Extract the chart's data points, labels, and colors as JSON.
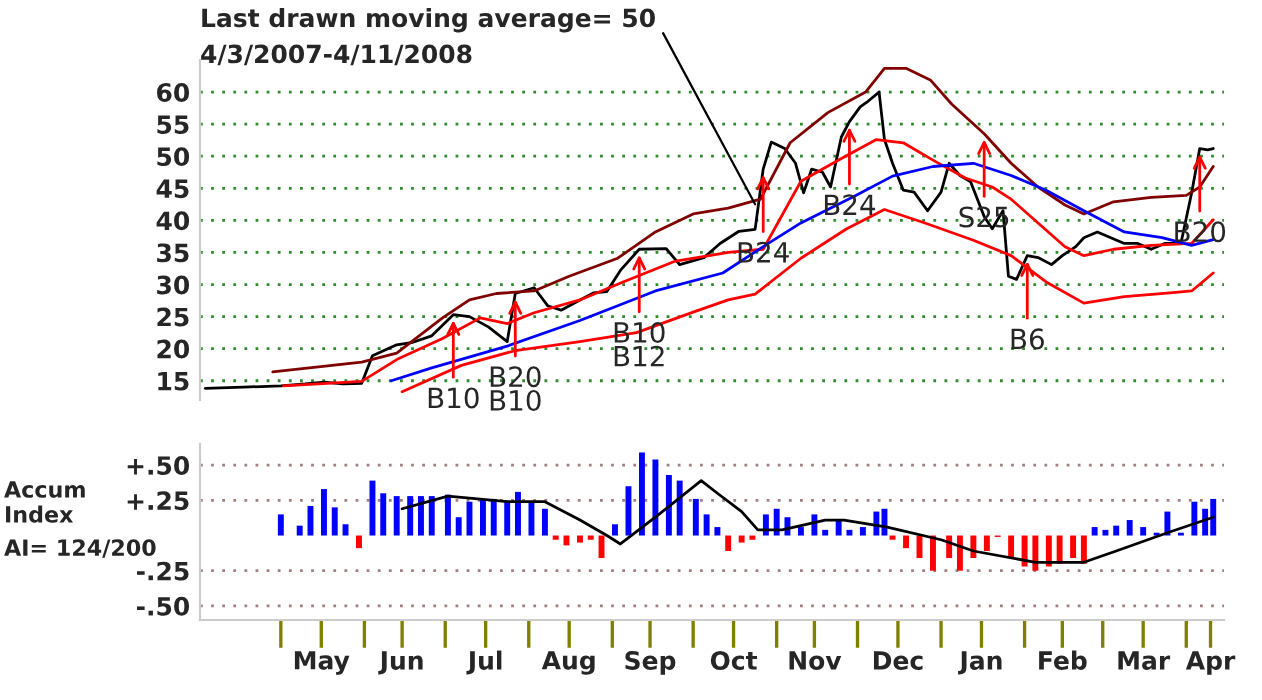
{
  "chart_data": [
    {
      "type": "line",
      "subtitle": "4/3/2007-4/11/2008",
      "annotations": [
        {
          "text": "Last drawn moving average= 50",
          "x": "2007-10-24",
          "y": 42.5
        },
        {
          "text": "B10",
          "x": "2007-07-04",
          "y": 25.3
        },
        {
          "text": "B20\nB10",
          "x": "2007-07-27",
          "y": 28.6
        },
        {
          "text": "B10\nB12",
          "x": "2007-09-11",
          "y": 35.5
        },
        {
          "text": "B24",
          "x": "2007-10-27",
          "y": 48.0
        },
        {
          "text": "B24",
          "x": "2007-11-28",
          "y": 55.4
        },
        {
          "text": "S25",
          "x": "2008-01-17",
          "y": 53.5
        },
        {
          "text": "B6",
          "x": "2008-02-02",
          "y": 34.5
        },
        {
          "text": "B20",
          "x": "2008-04-06",
          "y": 51.2
        }
      ],
      "series": [
        {
          "color": "#000000",
          "x": [
            "2007-04-03",
            "2007-04-17",
            "2007-05-01",
            "2007-05-10",
            "2007-05-17",
            "2007-05-24",
            "2007-05-31",
            "2007-06-04",
            "2007-06-13",
            "2007-06-19",
            "2007-06-26",
            "2007-07-04",
            "2007-07-10",
            "2007-07-17",
            "2007-07-24",
            "2007-07-27",
            "2007-08-03",
            "2007-08-08",
            "2007-08-13",
            "2007-08-20",
            "2007-08-25",
            "2007-08-30",
            "2007-09-04",
            "2007-09-11",
            "2007-09-21",
            "2007-09-26",
            "2007-10-05",
            "2007-10-11",
            "2007-10-18",
            "2007-10-24",
            "2007-10-27",
            "2007-10-30",
            "2007-11-04",
            "2007-11-08",
            "2007-11-11",
            "2007-11-14",
            "2007-11-18",
            "2007-11-21",
            "2007-11-25",
            "2007-11-28",
            "2007-12-02",
            "2007-12-05",
            "2007-12-09",
            "2007-12-11",
            "2007-12-14",
            "2007-12-18",
            "2007-12-22",
            "2007-12-27",
            "2008-01-01",
            "2008-01-04",
            "2008-01-08",
            "2008-01-12",
            "2008-01-17",
            "2008-01-20",
            "2008-01-24",
            "2008-01-26",
            "2008-01-29",
            "2008-02-02",
            "2008-02-06",
            "2008-02-11",
            "2008-02-15",
            "2008-02-20",
            "2008-02-23",
            "2008-02-28",
            "2008-03-04",
            "2008-03-09",
            "2008-03-14",
            "2008-03-19",
            "2008-03-24",
            "2008-03-30",
            "2008-04-03",
            "2008-04-06",
            "2008-04-09",
            "2008-04-11"
          ],
          "values": [
            13.8,
            14.0,
            14.2,
            14.5,
            14.8,
            14.5,
            14.6,
            18.9,
            20.6,
            21.0,
            22.0,
            25.3,
            25.0,
            23.4,
            21.1,
            28.6,
            29.5,
            26.7,
            26.0,
            27.6,
            28.7,
            28.9,
            32.2,
            35.5,
            35.6,
            33.1,
            34.2,
            36.4,
            38.3,
            38.6,
            48.0,
            52.2,
            51.2,
            48.9,
            44.3,
            48.0,
            47.5,
            45.2,
            53.0,
            55.4,
            57.7,
            58.6,
            60.0,
            52.6,
            48.9,
            44.7,
            44.4,
            41.5,
            44.4,
            48.9,
            47.0,
            46.0,
            40.6,
            38.7,
            41.5,
            31.3,
            30.8,
            34.5,
            34.2,
            33.1,
            34.5,
            35.9,
            37.3,
            38.2,
            37.3,
            36.4,
            36.4,
            35.5,
            36.4,
            36.4,
            44.3,
            51.2,
            51.0,
            51.2
          ]
        },
        {
          "color": "#800000",
          "x": [
            "2007-04-28",
            "2007-05-31",
            "2007-06-13",
            "2007-06-30",
            "2007-07-10",
            "2007-07-20",
            "2007-08-03",
            "2007-08-16",
            "2007-09-03",
            "2007-09-17",
            "2007-10-01",
            "2007-10-14",
            "2007-10-26",
            "2007-11-06",
            "2007-11-20",
            "2007-12-04",
            "2007-12-11",
            "2007-12-19",
            "2007-12-28",
            "2008-01-05",
            "2008-01-17",
            "2008-01-27",
            "2008-02-06",
            "2008-02-16",
            "2008-02-23",
            "2008-03-05",
            "2008-03-19",
            "2008-04-01",
            "2008-04-06",
            "2008-04-11"
          ],
          "values": [
            16.4,
            17.9,
            19.3,
            24.8,
            27.6,
            28.6,
            29.0,
            31.3,
            34.1,
            38.2,
            41.0,
            41.9,
            43.3,
            52.1,
            56.8,
            60.0,
            63.7,
            63.7,
            61.9,
            58.1,
            53.5,
            48.9,
            45.2,
            42.4,
            41.0,
            42.9,
            43.6,
            43.9,
            45.2,
            48.4
          ]
        },
        {
          "color": "#ff0000",
          "x": [
            "2007-05-02",
            "2007-05-31",
            "2007-06-13",
            "2007-06-30",
            "2007-07-14",
            "2007-07-24",
            "2007-08-03",
            "2007-08-20",
            "2007-09-05",
            "2007-09-24",
            "2007-10-14",
            "2007-10-27",
            "2007-11-10",
            "2007-11-24",
            "2007-12-08",
            "2007-12-18",
            "2007-12-29",
            "2008-01-10",
            "2008-01-20",
            "2008-01-27",
            "2008-02-06",
            "2008-02-16",
            "2008-02-23",
            "2008-03-05",
            "2008-03-19",
            "2008-04-03",
            "2008-04-11"
          ],
          "values": [
            14.2,
            14.9,
            18.3,
            21.6,
            24.8,
            23.9,
            25.6,
            27.6,
            30.4,
            33.6,
            35.0,
            35.5,
            46.1,
            49.4,
            52.6,
            52.1,
            49.4,
            46.6,
            45.2,
            43.3,
            39.6,
            35.9,
            34.5,
            35.5,
            36.1,
            36.4,
            40.1
          ]
        },
        {
          "color": "#0000ff",
          "x": [
            "2007-06-11",
            "2007-06-26",
            "2007-07-24",
            "2007-08-20",
            "2007-09-17",
            "2007-10-12",
            "2007-10-27",
            "2007-11-10",
            "2007-11-30",
            "2007-12-14",
            "2007-12-29",
            "2008-01-13",
            "2008-01-27",
            "2008-02-09",
            "2008-02-23",
            "2008-03-09",
            "2008-03-23",
            "2008-04-03",
            "2008-04-11"
          ],
          "values": [
            15.0,
            17.0,
            20.4,
            24.4,
            29.0,
            31.8,
            35.9,
            39.6,
            43.8,
            46.9,
            48.4,
            48.9,
            47.0,
            44.7,
            41.5,
            38.2,
            37.3,
            36.1,
            37.0
          ]
        },
        {
          "color": "#ff0000",
          "x": [
            "2007-06-15",
            "2007-07-07",
            "2007-07-27",
            "2007-08-20",
            "2007-09-10",
            "2007-10-01",
            "2007-10-14",
            "2007-10-24",
            "2007-11-10",
            "2007-11-27",
            "2007-12-11",
            "2007-12-26",
            "2008-01-13",
            "2008-01-27",
            "2008-02-09",
            "2008-02-23",
            "2008-03-09",
            "2008-03-26",
            "2008-04-03",
            "2008-04-11"
          ],
          "values": [
            13.3,
            17.4,
            19.7,
            21.1,
            22.5,
            25.7,
            27.6,
            28.5,
            34.1,
            38.7,
            41.7,
            39.6,
            36.9,
            34.5,
            30.4,
            27.1,
            28.1,
            28.7,
            29.0,
            31.8
          ]
        }
      ],
      "xlim": [
        "2007-04-01",
        "2008-04-15"
      ],
      "ylim": [
        12,
        65
      ],
      "yticks": [
        15,
        20,
        25,
        30,
        35,
        40,
        45,
        50,
        55,
        60
      ],
      "grid": "y",
      "tick_labels": "y"
    },
    {
      "type": "bar",
      "ylabel": "Accum\nIndex",
      "annotations": [
        "AI= 124/200"
      ],
      "series": [
        {
          "type": "bar",
          "x": [
            "2007-05-01",
            "2007-05-08",
            "2007-05-12",
            "2007-05-17",
            "2007-05-21",
            "2007-05-25",
            "2007-05-30",
            "2007-06-04",
            "2007-06-08",
            "2007-06-13",
            "2007-06-18",
            "2007-06-22",
            "2007-06-26",
            "2007-07-02",
            "2007-07-06",
            "2007-07-10",
            "2007-07-15",
            "2007-07-19",
            "2007-07-24",
            "2007-07-28",
            "2007-08-02",
            "2007-08-07",
            "2007-08-11",
            "2007-08-15",
            "2007-08-20",
            "2007-08-24",
            "2007-08-28",
            "2007-09-02",
            "2007-09-07",
            "2007-09-12",
            "2007-09-17",
            "2007-09-22",
            "2007-09-26",
            "2007-10-02",
            "2007-10-06",
            "2007-10-10",
            "2007-10-14",
            "2007-10-19",
            "2007-10-23",
            "2007-10-28",
            "2007-11-01",
            "2007-11-05",
            "2007-11-10",
            "2007-11-15",
            "2007-11-19",
            "2007-11-24",
            "2007-11-28",
            "2007-12-03",
            "2007-12-08",
            "2007-12-11",
            "2007-12-14",
            "2007-12-19",
            "2007-12-24",
            "2007-12-29",
            "2008-01-04",
            "2008-01-08",
            "2008-01-13",
            "2008-01-18",
            "2008-01-22",
            "2008-01-27",
            "2008-02-01",
            "2008-02-05",
            "2008-02-10",
            "2008-02-14",
            "2008-02-19",
            "2008-02-23",
            "2008-02-27",
            "2008-03-02",
            "2008-03-06",
            "2008-03-11",
            "2008-03-16",
            "2008-03-21",
            "2008-03-25",
            "2008-03-30",
            "2008-04-04",
            "2008-04-08",
            "2008-04-11"
          ],
          "values": [
            0.15,
            0.07,
            0.21,
            0.33,
            0.2,
            0.08,
            -0.09,
            0.39,
            0.3,
            0.28,
            0.28,
            0.28,
            0.28,
            0.29,
            0.13,
            0.24,
            0.26,
            0.26,
            0.24,
            0.31,
            0.24,
            0.19,
            -0.03,
            -0.07,
            -0.05,
            -0.03,
            -0.16,
            0.08,
            0.35,
            0.59,
            0.54,
            0.43,
            0.39,
            0.26,
            0.15,
            0.06,
            -0.11,
            -0.05,
            -0.03,
            0.15,
            0.19,
            0.13,
            0.06,
            0.15,
            0.04,
            0.11,
            0.04,
            0.06,
            0.17,
            0.19,
            -0.03,
            -0.09,
            -0.16,
            -0.25,
            -0.16,
            -0.25,
            -0.16,
            -0.11,
            -0.01,
            -0.16,
            -0.22,
            -0.25,
            -0.22,
            -0.2,
            -0.16,
            -0.2,
            0.06,
            0.04,
            0.07,
            0.11,
            0.06,
            0.02,
            0.17,
            0.02,
            0.24,
            0.19,
            0.26
          ],
          "colors": [
            "#0000ff",
            "#0000ff",
            "#0000ff",
            "#0000ff",
            "#0000ff",
            "#0000ff",
            "#ff0000",
            "#0000ff",
            "#0000ff",
            "#0000ff",
            "#0000ff",
            "#0000ff",
            "#0000ff",
            "#0000ff",
            "#0000ff",
            "#0000ff",
            "#0000ff",
            "#0000ff",
            "#0000ff",
            "#0000ff",
            "#0000ff",
            "#0000ff",
            "#ff0000",
            "#ff0000",
            "#ff0000",
            "#ff0000",
            "#ff0000",
            "#0000ff",
            "#0000ff",
            "#0000ff",
            "#0000ff",
            "#0000ff",
            "#0000ff",
            "#0000ff",
            "#0000ff",
            "#0000ff",
            "#ff0000",
            "#ff0000",
            "#ff0000",
            "#0000ff",
            "#0000ff",
            "#0000ff",
            "#0000ff",
            "#0000ff",
            "#0000ff",
            "#0000ff",
            "#0000ff",
            "#0000ff",
            "#0000ff",
            "#0000ff",
            "#ff0000",
            "#ff0000",
            "#ff0000",
            "#ff0000",
            "#ff0000",
            "#ff0000",
            "#ff0000",
            "#ff0000",
            "#ff0000",
            "#ff0000",
            "#ff0000",
            "#ff0000",
            "#ff0000",
            "#ff0000",
            "#ff0000",
            "#ff0000",
            "#0000ff",
            "#0000ff",
            "#0000ff",
            "#0000ff",
            "#0000ff",
            "#0000ff",
            "#0000ff",
            "#0000ff",
            "#0000ff",
            "#0000ff",
            "#0000ff"
          ]
        },
        {
          "type": "line",
          "color": "#000000",
          "x": [
            "2007-06-15",
            "2007-07-02",
            "2007-07-24",
            "2007-08-07",
            "2007-08-20",
            "2007-08-30",
            "2007-09-04",
            "2007-09-17",
            "2007-10-04",
            "2007-10-10",
            "2007-10-19",
            "2007-10-25",
            "2007-11-03",
            "2007-11-19",
            "2007-11-26",
            "2007-12-12",
            "2008-01-01",
            "2008-01-13",
            "2008-02-05",
            "2008-02-23",
            "2008-03-06",
            "2008-03-25",
            "2008-04-11"
          ],
          "values": [
            0.19,
            0.28,
            0.24,
            0.24,
            0.11,
            0.0,
            -0.06,
            0.13,
            0.39,
            0.3,
            0.17,
            0.04,
            0.04,
            0.11,
            0.11,
            0.06,
            -0.03,
            -0.11,
            -0.19,
            -0.19,
            -0.11,
            0.02,
            0.13
          ]
        }
      ],
      "xlim": [
        "2007-04-01",
        "2008-04-15"
      ],
      "ylim": [
        -0.6,
        0.65
      ],
      "yticks": [
        {
          "value": 0.5,
          "label": "+.50"
        },
        {
          "value": 0.25,
          "label": "+.25"
        },
        {
          "value": -0.25,
          "label": "-.25"
        },
        {
          "value": -0.5,
          "label": "-.50"
        }
      ],
      "xticks": [
        {
          "value": "2007-05-01",
          "label": null
        },
        {
          "value": "2007-05-16",
          "label": "May"
        },
        {
          "value": "2007-06-01",
          "label": null
        },
        {
          "value": "2007-06-15",
          "label": "Jun"
        },
        {
          "value": "2007-07-01",
          "label": null
        },
        {
          "value": "2007-07-16",
          "label": "Jul"
        },
        {
          "value": "2007-08-01",
          "label": null
        },
        {
          "value": "2007-08-16",
          "label": "Aug"
        },
        {
          "value": "2007-09-01",
          "label": null
        },
        {
          "value": "2007-09-15",
          "label": "Sep"
        },
        {
          "value": "2007-10-01",
          "label": null
        },
        {
          "value": "2007-10-16",
          "label": "Oct"
        },
        {
          "value": "2007-11-01",
          "label": null
        },
        {
          "value": "2007-11-15",
          "label": "Nov"
        },
        {
          "value": "2007-12-01",
          "label": null
        },
        {
          "value": "2007-12-16",
          "label": "Dec"
        },
        {
          "value": "2008-01-01",
          "label": null
        },
        {
          "value": "2008-01-16",
          "label": "Jan"
        },
        {
          "value": "2008-02-01",
          "label": null
        },
        {
          "value": "2008-02-15",
          "label": "Feb"
        },
        {
          "value": "2008-03-01",
          "label": null
        },
        {
          "value": "2008-03-16",
          "label": "Mar"
        },
        {
          "value": "2008-04-01",
          "label": null
        },
        {
          "value": "2008-04-10",
          "label": "Apr"
        }
      ],
      "grid": "y"
    }
  ]
}
